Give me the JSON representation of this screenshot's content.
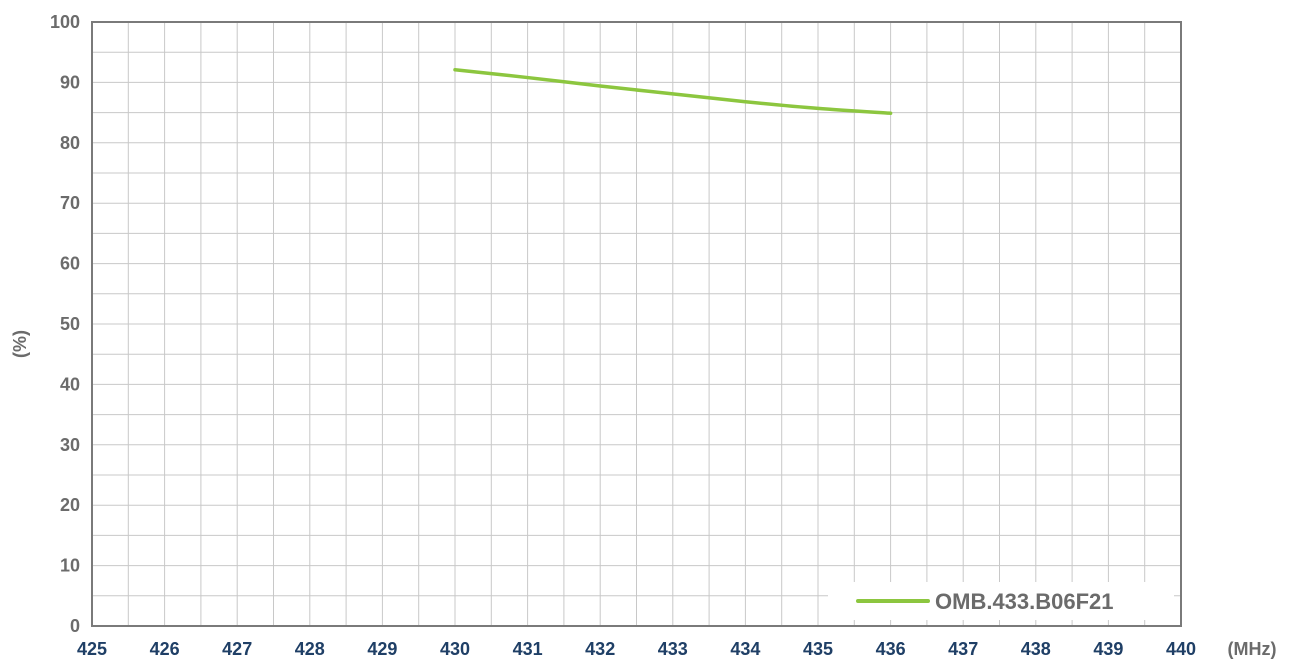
{
  "chart_data": {
    "type": "line",
    "title": "",
    "xlabel": "(MHz)",
    "ylabel": "(%)",
    "xlim": [
      425,
      440
    ],
    "ylim": [
      0,
      100
    ],
    "x_ticks": [
      425,
      426,
      427,
      428,
      429,
      430,
      431,
      432,
      433,
      434,
      435,
      436,
      437,
      438,
      439,
      440
    ],
    "y_ticks": [
      0,
      10,
      20,
      30,
      40,
      50,
      60,
      70,
      80,
      90,
      100
    ],
    "grid": true,
    "legend_position": "bottom-right",
    "series": [
      {
        "name": "OMB.433.B06F21",
        "color": "#8cc63f",
        "x": [
          430,
          431,
          432,
          433,
          434,
          435,
          436
        ],
        "y": [
          92.1,
          90.8,
          89.4,
          88.1,
          86.8,
          85.7,
          84.9
        ]
      }
    ]
  }
}
